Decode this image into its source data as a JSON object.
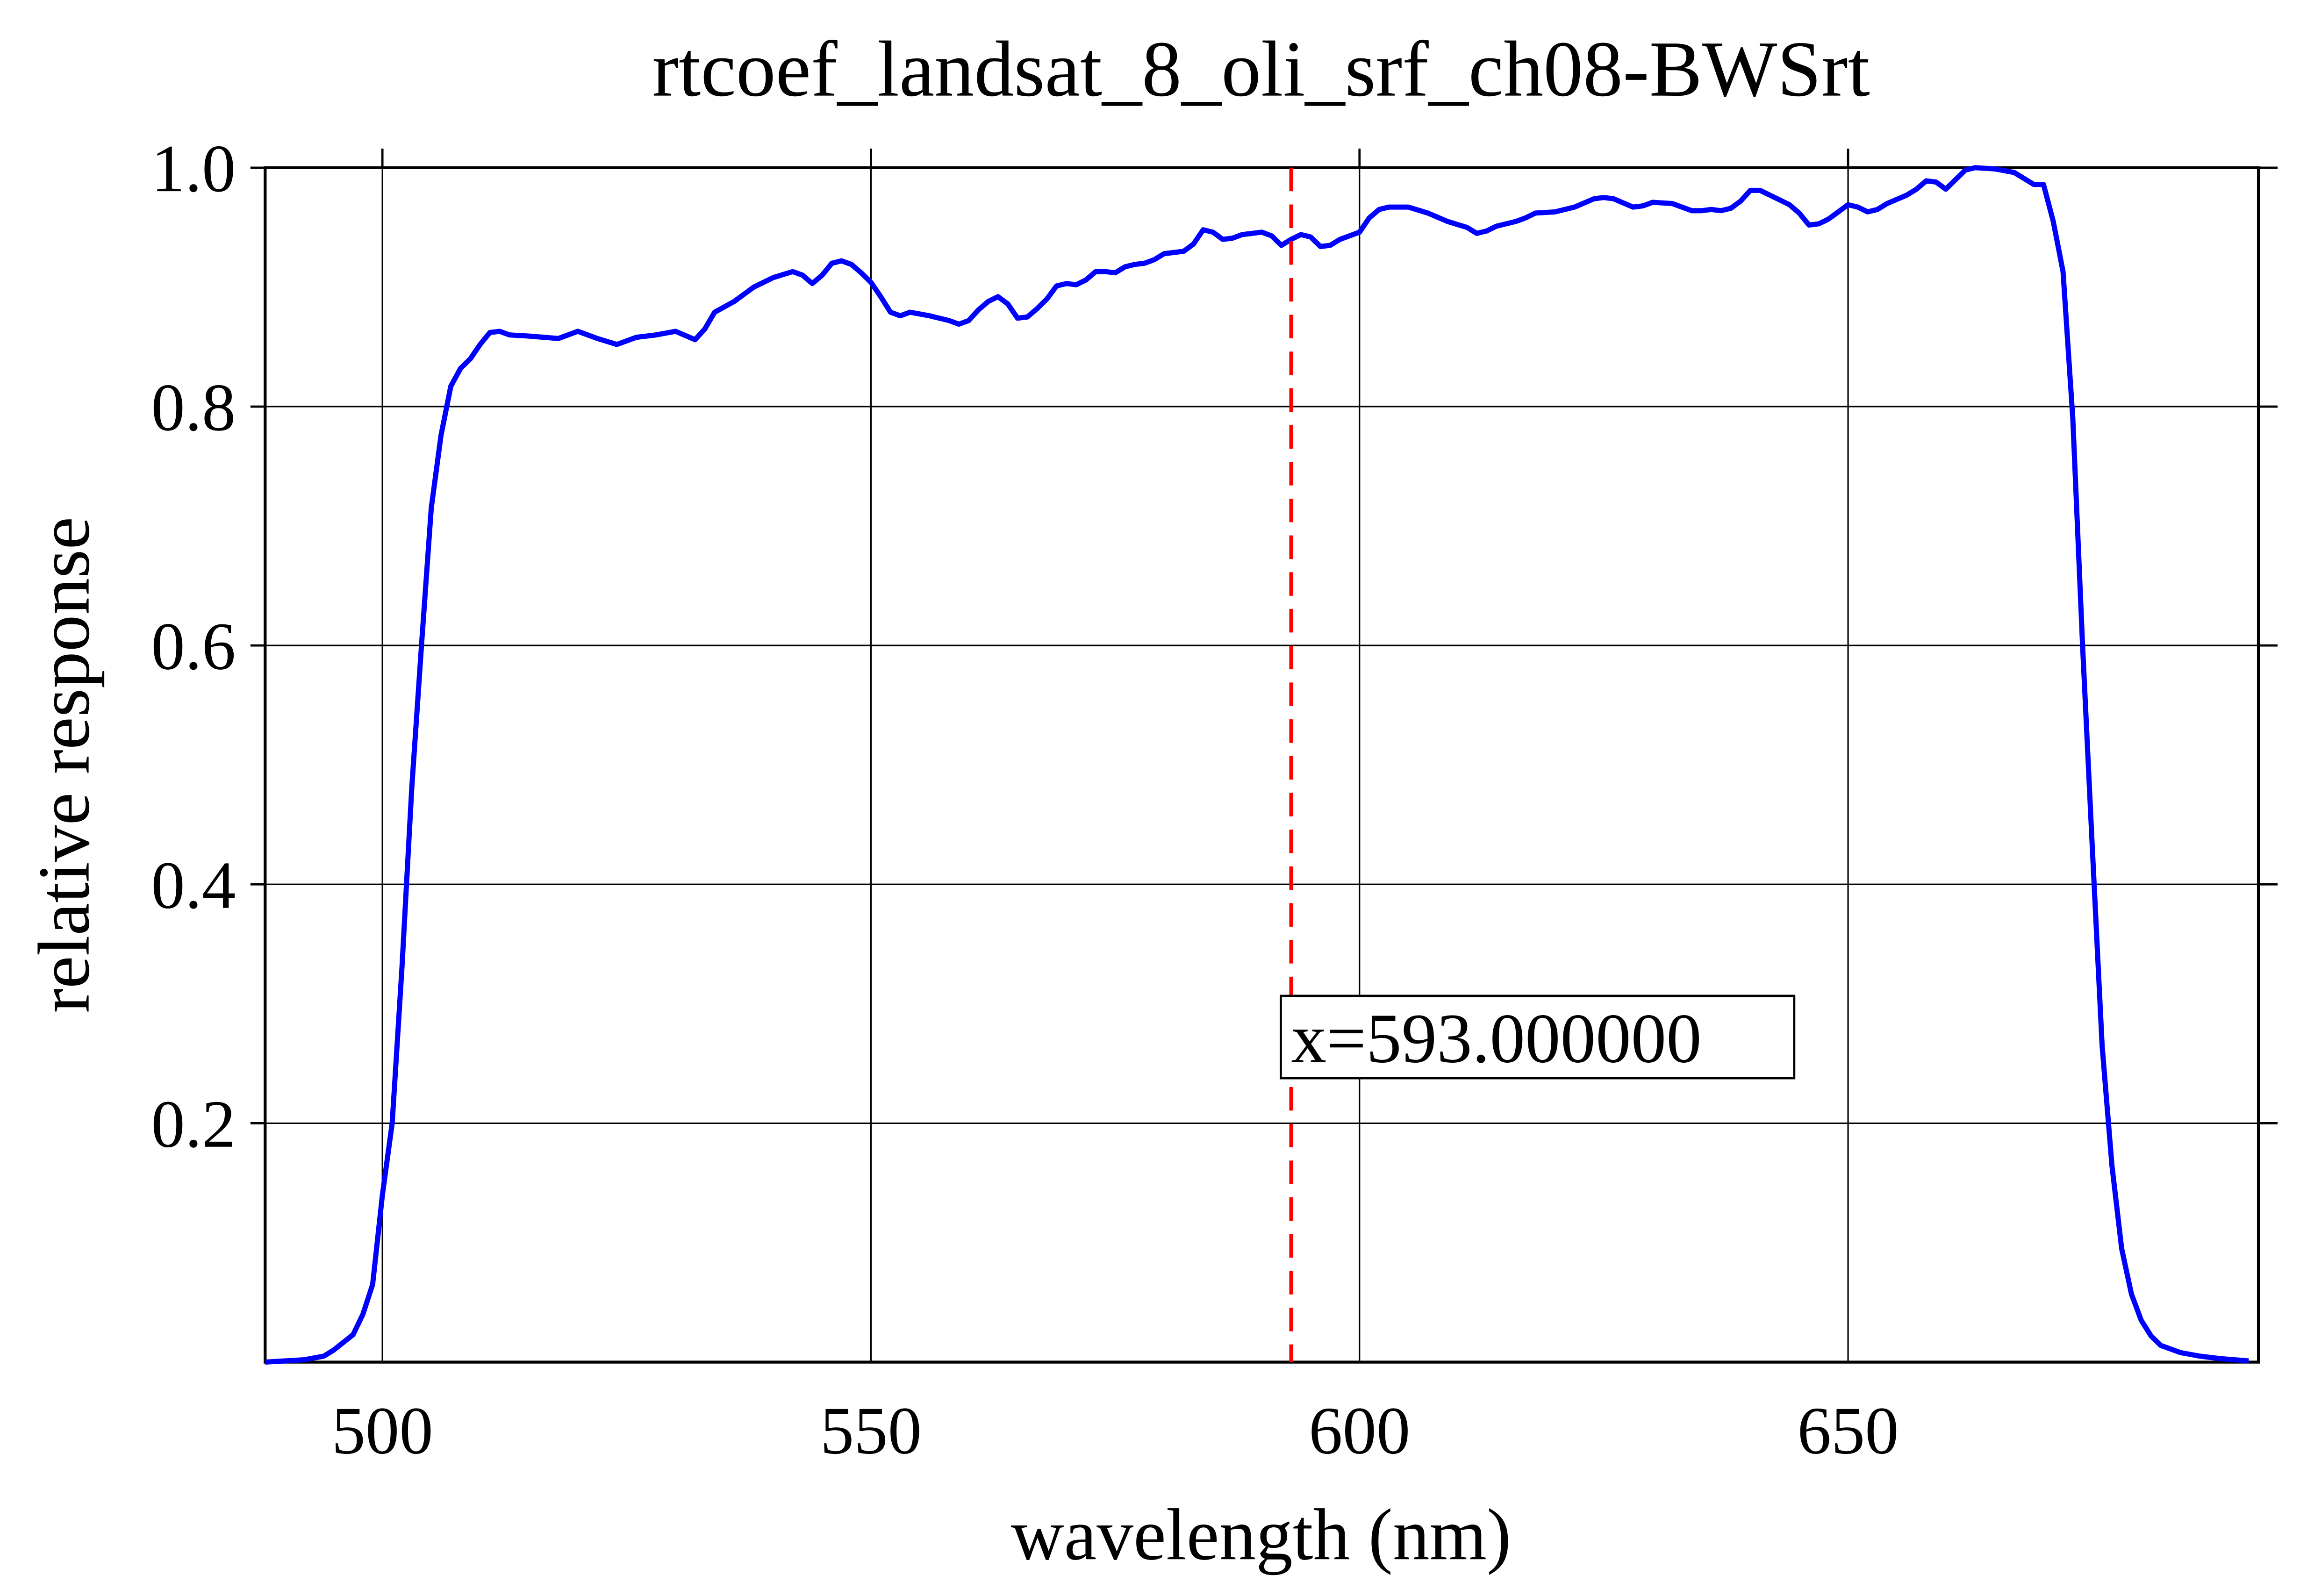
{
  "chart_data": {
    "type": "line",
    "title": "rtcoef_landsat_8_oli_srf_ch08-BWSrt",
    "x_label": "wavelength (nm)",
    "y_label": "relative response",
    "x": [
      488,
      490,
      492,
      494,
      495,
      497,
      498,
      499,
      500,
      501,
      502,
      503,
      504,
      505,
      506,
      507,
      508,
      509,
      510,
      511,
      512,
      513,
      515,
      518,
      520,
      522,
      524,
      526,
      528,
      530,
      532,
      533,
      534,
      536,
      538,
      540,
      542,
      543,
      544,
      545,
      546,
      547,
      548,
      549,
      550,
      551,
      552,
      553,
      554,
      556,
      558,
      559,
      560,
      561,
      562,
      563,
      564,
      565,
      566,
      567,
      568,
      569,
      570,
      571,
      572,
      573,
      574,
      575,
      576,
      577,
      578,
      579,
      580,
      581,
      582,
      583,
      584,
      585,
      586,
      587,
      588,
      590,
      591,
      592,
      593,
      594,
      595,
      596,
      597,
      598,
      600,
      601,
      602,
      603,
      605,
      607,
      609,
      611,
      612,
      613,
      614,
      616,
      617,
      618,
      620,
      622,
      624,
      625,
      626,
      628,
      629,
      630,
      632,
      633,
      634,
      635,
      636,
      637,
      638,
      639,
      640,
      641,
      642,
      644,
      645,
      646,
      647,
      648,
      649,
      650,
      651,
      652,
      653,
      654,
      656,
      657,
      658,
      659,
      660,
      661,
      662,
      663,
      665,
      667,
      668,
      669,
      670,
      671,
      672,
      673,
      674,
      675,
      676,
      677,
      678,
      679,
      680,
      681,
      682,
      684,
      686,
      688,
      691
    ],
    "values": [
      0,
      0.001,
      0.002,
      0.005,
      0.01,
      0.023,
      0.04,
      0.065,
      0.14,
      0.2,
      0.33,
      0.48,
      0.6,
      0.715,
      0.776,
      0.817,
      0.832,
      0.84,
      0.852,
      0.862,
      0.863,
      0.86,
      0.859,
      0.857,
      0.863,
      0.857,
      0.852,
      0.858,
      0.86,
      0.863,
      0.856,
      0.865,
      0.879,
      0.888,
      0.9,
      0.908,
      0.913,
      0.91,
      0.903,
      0.91,
      0.92,
      0.922,
      0.919,
      0.912,
      0.904,
      0.892,
      0.879,
      0.876,
      0.879,
      0.876,
      0.872,
      0.869,
      0.872,
      0.881,
      0.888,
      0.892,
      0.886,
      0.874,
      0.875,
      0.882,
      0.89,
      0.901,
      0.903,
      0.902,
      0.906,
      0.913,
      0.913,
      0.912,
      0.917,
      0.919,
      0.92,
      0.923,
      0.928,
      0.929,
      0.93,
      0.936,
      0.948,
      0.946,
      0.94,
      0.941,
      0.944,
      0.946,
      0.943,
      0.935,
      0.94,
      0.944,
      0.942,
      0.934,
      0.935,
      0.94,
      0.946,
      0.958,
      0.965,
      0.967,
      0.967,
      0.962,
      0.955,
      0.95,
      0.945,
      0.947,
      0.951,
      0.955,
      0.958,
      0.962,
      0.963,
      0.967,
      0.974,
      0.975,
      0.974,
      0.967,
      0.968,
      0.971,
      0.97,
      0.967,
      0.964,
      0.964,
      0.965,
      0.964,
      0.966,
      0.972,
      0.981,
      0.981,
      0.977,
      0.969,
      0.962,
      0.952,
      0.953,
      0.957,
      0.963,
      0.969,
      0.967,
      0.963,
      0.965,
      0.97,
      0.977,
      0.982,
      0.989,
      0.988,
      0.982,
      0.99,
      0.998,
      1.0,
      0.999,
      0.996,
      0.991,
      0.986,
      0.986,
      0.955,
      0.913,
      0.79,
      0.6,
      0.43,
      0.265,
      0.165,
      0.095,
      0.057,
      0.035,
      0.022,
      0.014,
      0.008,
      0.005,
      0.003,
      0.001
    ],
    "color": "#0000ff",
    "xlim": [
      488,
      692
    ],
    "xticks": [
      500,
      550,
      600,
      650
    ],
    "ylim": [
      0,
      1
    ],
    "yticks": [
      0.2,
      0.4,
      0.6,
      0.8,
      {
        "value": 1,
        "label": "1.0"
      }
    ],
    "grid": true,
    "vline": {
      "x": 593,
      "color": "#ff0000",
      "label": "x=593.000000"
    }
  }
}
